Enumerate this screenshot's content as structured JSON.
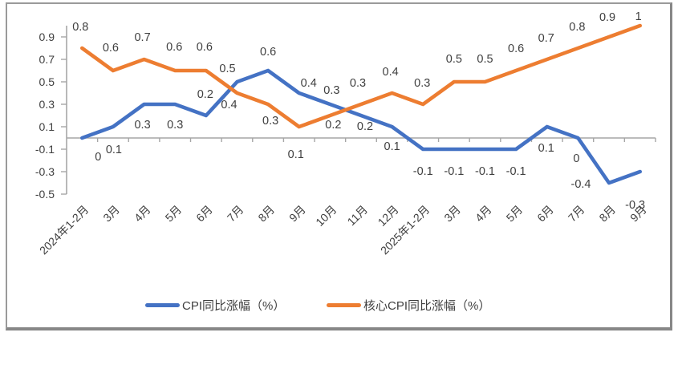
{
  "chart_data": {
    "type": "line",
    "categories": [
      "2024年1-2月",
      "3月",
      "4月",
      "5月",
      "6月",
      "7月",
      "8月",
      "9月",
      "10月",
      "11月",
      "12月",
      "2025年1-2月",
      "3月",
      "4月",
      "5月",
      "6月",
      "7月",
      "8月",
      "9月"
    ],
    "series": [
      {
        "name": "CPI同比涨幅（%）",
        "color": "#4472C4",
        "values": [
          0,
          0.1,
          0.3,
          0.3,
          0.2,
          0.5,
          0.6,
          0.4,
          0.3,
          0.2,
          0.1,
          -0.1,
          -0.1,
          -0.1,
          -0.1,
          0.1,
          0,
          -0.4,
          -0.3
        ]
      },
      {
        "name": "核心CPI同比涨幅（%）",
        "color": "#ED7D31",
        "values": [
          0.8,
          0.6,
          0.7,
          0.6,
          0.6,
          0.4,
          0.3,
          0.1,
          0.2,
          0.3,
          0.4,
          0.3,
          0.5,
          0.5,
          0.6,
          0.7,
          0.8,
          0.9,
          1
        ]
      }
    ],
    "y_axis": {
      "tick_values": [
        0.9,
        0.7,
        0.5,
        0.3,
        0.1,
        -0.1,
        -0.3,
        -0.5
      ],
      "min": -0.5,
      "max": 1.0
    },
    "title": "",
    "xlabel": "",
    "ylabel": "",
    "grid": false,
    "legend_position": "bottom",
    "data_labels": true
  },
  "colors": {
    "axis_line": "#a6a6a6",
    "label_text": "#3f3f3f",
    "frame_border": "#9a9a9a",
    "background": "#ffffff"
  }
}
